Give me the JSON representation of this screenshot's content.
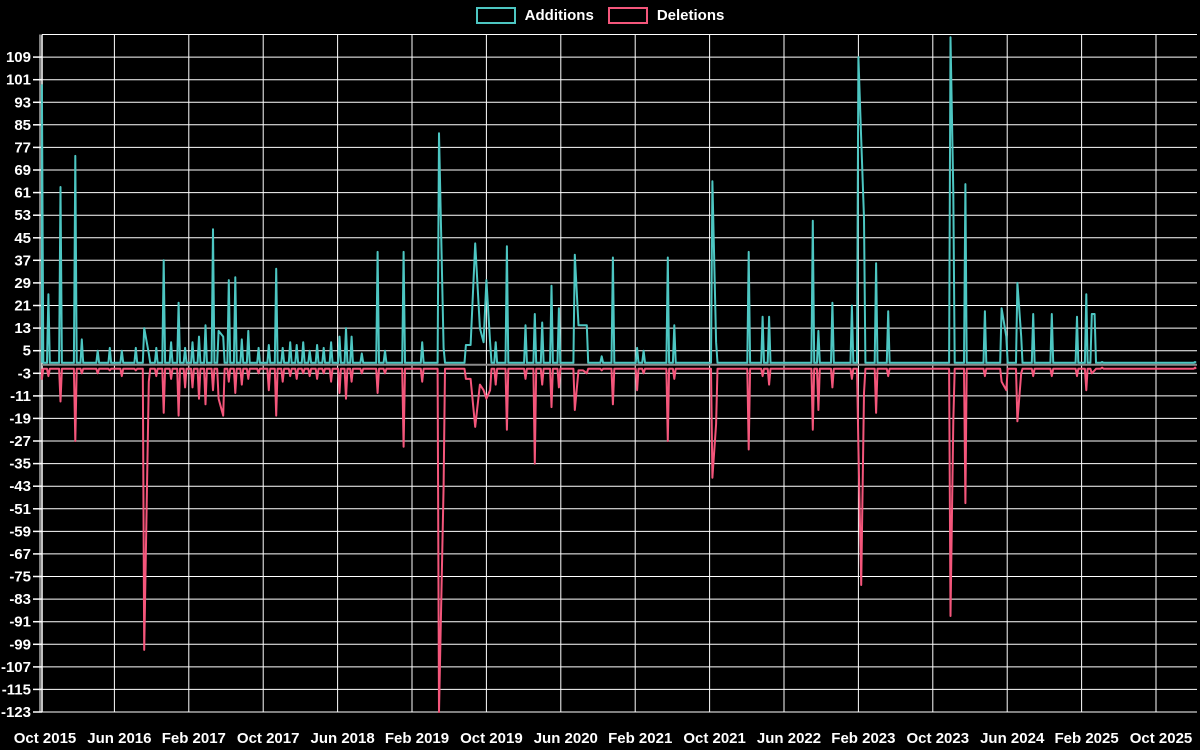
{
  "legend": {
    "additions_label": "Additions",
    "deletions_label": "Deletions"
  },
  "colors": {
    "background": "#000000",
    "grid": "#ffffff",
    "text": "#ffffff",
    "zero_axis": "#8a8a8a",
    "additions": "#4dc6c2",
    "deletions": "#f4567b"
  },
  "chart_data": {
    "type": "line",
    "title": "",
    "legend_position": "top-center",
    "grid": true,
    "series_names": [
      "Additions",
      "Deletions"
    ],
    "x_axis": {
      "unit": "months since Oct 2015",
      "tick_interval_months": 8,
      "tick_labels": [
        "Oct 2015",
        "Jun 2016",
        "Feb 2017",
        "Oct 2017",
        "Jun 2018",
        "Feb 2019",
        "Oct 2019",
        "Jun 2020",
        "Feb 2021",
        "Oct 2021",
        "Jun 2022",
        "Feb 2023",
        "Oct 2023",
        "Jun 2024",
        "Feb 2025",
        "Oct 2025"
      ]
    },
    "y_axis": {
      "min": -123,
      "max": 117,
      "tick_step": 8,
      "tick_labels": [
        109,
        101,
        93,
        85,
        77,
        69,
        61,
        53,
        45,
        37,
        29,
        21,
        13,
        5,
        -3,
        -11,
        -19,
        -27,
        -35,
        -43,
        -51,
        -59,
        -67,
        -75,
        -83,
        -91,
        -99,
        -107,
        -115,
        -123
      ]
    },
    "points_format": [
      "months_since_oct_2015",
      "additions",
      "deletions"
    ],
    "baseline": {
      "additions": 0.7,
      "deletions": -1.4
    },
    "points": [
      [
        0.2,
        99,
        -5
      ],
      [
        0.9,
        25,
        -4
      ],
      [
        2.2,
        63,
        -13
      ],
      [
        3.8,
        74,
        -27
      ],
      [
        4.5,
        9,
        -3
      ],
      [
        6.2,
        5,
        -3
      ],
      [
        7.5,
        6,
        -2
      ],
      [
        8.8,
        5,
        -4
      ],
      [
        10.3,
        6,
        -2
      ],
      [
        11.2,
        13,
        -101
      ],
      [
        11.7,
        4,
        -6
      ],
      [
        12.5,
        6,
        -4
      ],
      [
        13.3,
        37,
        -17
      ],
      [
        14.1,
        8,
        -5
      ],
      [
        14.9,
        22,
        -18
      ],
      [
        15.6,
        6,
        -8
      ],
      [
        16.4,
        8,
        -8
      ],
      [
        17.1,
        10,
        -12
      ],
      [
        17.8,
        14,
        -14
      ],
      [
        18.6,
        48,
        -9
      ],
      [
        19.2,
        12,
        -12
      ],
      [
        19.7,
        10,
        -18
      ],
      [
        20.3,
        30,
        -6
      ],
      [
        21.0,
        31,
        -10
      ],
      [
        21.7,
        9,
        -7
      ],
      [
        22.4,
        12,
        -5
      ],
      [
        23.5,
        6,
        -3
      ],
      [
        24.6,
        7,
        -9
      ],
      [
        25.4,
        34,
        -18
      ],
      [
        26.1,
        6,
        -6
      ],
      [
        26.9,
        8,
        -4
      ],
      [
        27.6,
        7,
        -5
      ],
      [
        28.3,
        8,
        -3
      ],
      [
        29.0,
        5,
        -4
      ],
      [
        29.8,
        7,
        -5
      ],
      [
        30.5,
        6,
        -3
      ],
      [
        31.3,
        8,
        -6
      ],
      [
        32.2,
        10,
        -10
      ],
      [
        32.9,
        13,
        -12
      ],
      [
        33.5,
        10,
        -6
      ],
      [
        34.6,
        4,
        -3
      ],
      [
        36.3,
        40,
        -10
      ],
      [
        37.1,
        5,
        -3
      ],
      [
        39.1,
        40,
        -29
      ],
      [
        41.1,
        8,
        -6
      ],
      [
        42.9,
        82,
        -123
      ],
      [
        43.4,
        6,
        -43
      ],
      [
        45.8,
        7,
        -5
      ],
      [
        46.3,
        7,
        -5
      ],
      [
        46.8,
        43,
        -22
      ],
      [
        47.3,
        13,
        -7
      ],
      [
        47.7,
        8,
        -9
      ],
      [
        48.0,
        30,
        -12
      ],
      [
        48.4,
        8,
        -9
      ],
      [
        49.0,
        8,
        -7
      ],
      [
        50.2,
        42,
        -23
      ],
      [
        52.2,
        14,
        -5
      ],
      [
        53.2,
        18,
        -35
      ],
      [
        54.0,
        15,
        -7
      ],
      [
        55.0,
        28,
        -15
      ],
      [
        55.8,
        20,
        -8
      ],
      [
        57.5,
        39,
        -16
      ],
      [
        57.9,
        14,
        -2
      ],
      [
        58.4,
        14,
        -2
      ],
      [
        58.8,
        14,
        -3
      ],
      [
        60.4,
        3,
        -2
      ],
      [
        61.6,
        38,
        -14
      ],
      [
        64.2,
        6,
        -9
      ],
      [
        64.9,
        5,
        -3
      ],
      [
        67.5,
        38,
        -27
      ],
      [
        68.2,
        14,
        -5
      ],
      [
        72.3,
        65,
        -40
      ],
      [
        72.7,
        8,
        -21
      ],
      [
        76.2,
        40,
        -30
      ],
      [
        77.7,
        17,
        -4
      ],
      [
        78.4,
        17,
        -7
      ],
      [
        83.1,
        51,
        -23
      ],
      [
        83.7,
        12,
        -16
      ],
      [
        85.2,
        22,
        -8
      ],
      [
        87.3,
        21,
        -5
      ],
      [
        88.0,
        109,
        -29
      ],
      [
        88.3,
        80,
        -78
      ],
      [
        88.6,
        52,
        -10
      ],
      [
        89.9,
        36,
        -17
      ],
      [
        91.2,
        19,
        -4
      ],
      [
        97.9,
        116,
        -89
      ],
      [
        98.2,
        61,
        -20
      ],
      [
        99.5,
        64,
        -49
      ],
      [
        101.6,
        19,
        -4
      ],
      [
        103.4,
        20,
        -6
      ],
      [
        103.9,
        10,
        -9
      ],
      [
        105.1,
        29,
        -20
      ],
      [
        105.5,
        10,
        -3
      ],
      [
        106.8,
        18,
        -4
      ],
      [
        108.8,
        18,
        -4
      ],
      [
        111.5,
        17,
        -4
      ],
      [
        112.5,
        25,
        -9
      ],
      [
        113.1,
        18,
        -3
      ],
      [
        113.4,
        18,
        -2
      ],
      [
        114.2,
        1,
        -1
      ],
      [
        124.2,
        1,
        -1
      ]
    ]
  }
}
